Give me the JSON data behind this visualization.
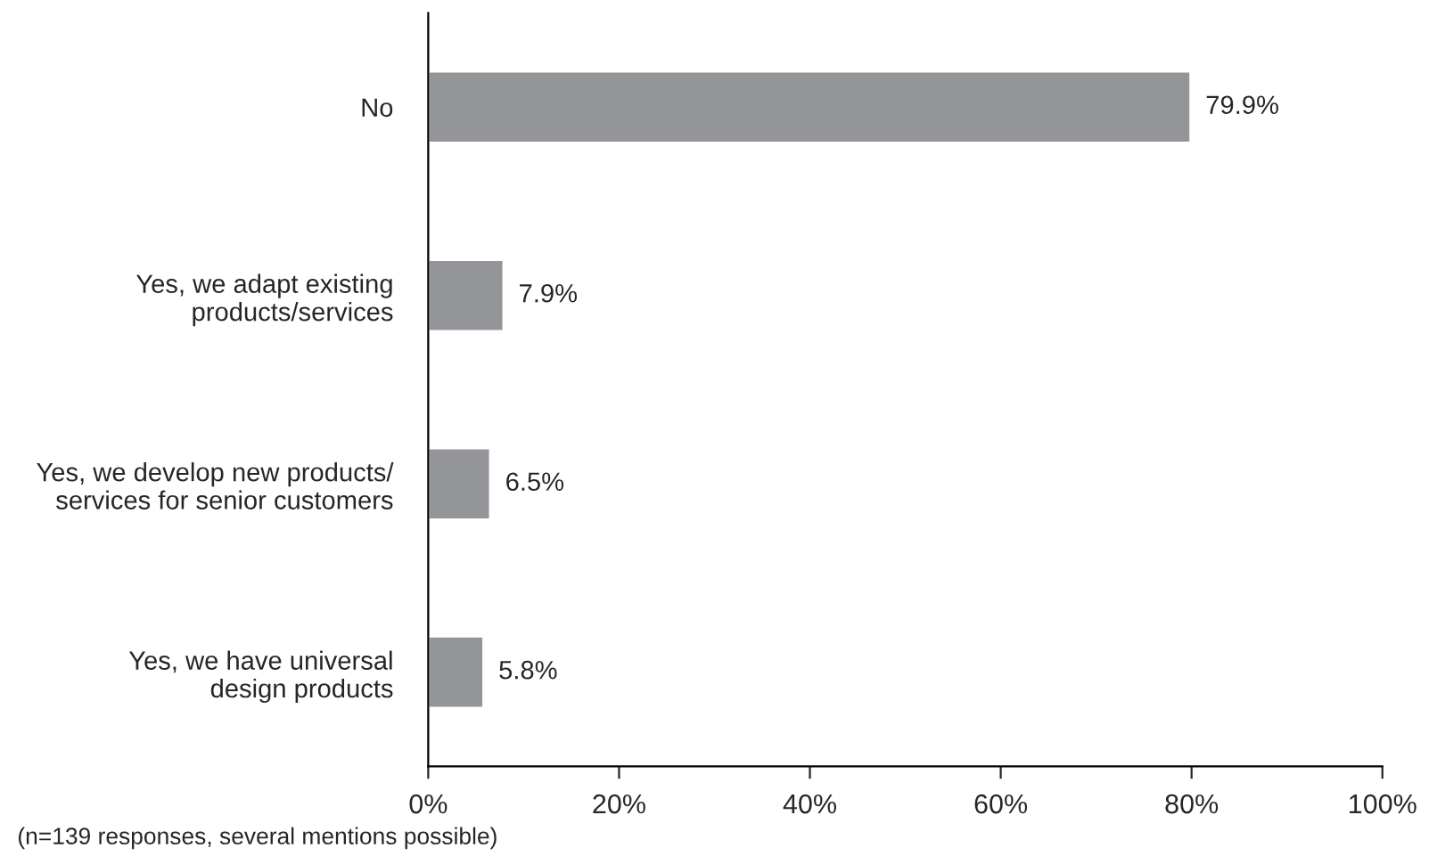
{
  "chart_data": {
    "type": "bar",
    "orientation": "horizontal",
    "categories": [
      "No",
      "Yes, we adapt existing\nproducts/services",
      "Yes, we develop new products/\nservices for senior customers",
      "Yes, we have universal\ndesign products"
    ],
    "values": [
      79.9,
      7.9,
      6.5,
      5.8
    ],
    "value_labels": [
      "79.9%",
      "7.9%",
      "6.5%",
      "5.8%"
    ],
    "color": "#939598",
    "xlim": [
      0,
      100
    ],
    "xticks": [
      {
        "value": 0,
        "label": "0%"
      },
      {
        "value": 20,
        "label": "20%"
      },
      {
        "value": 40,
        "label": "40%"
      },
      {
        "value": 60,
        "label": "60%"
      },
      {
        "value": 80,
        "label": "80%"
      },
      {
        "value": 100,
        "label": "100%"
      }
    ],
    "grid": false,
    "legend": false,
    "annotations": [
      "(n=139 responses, several mentions possible)"
    ]
  }
}
